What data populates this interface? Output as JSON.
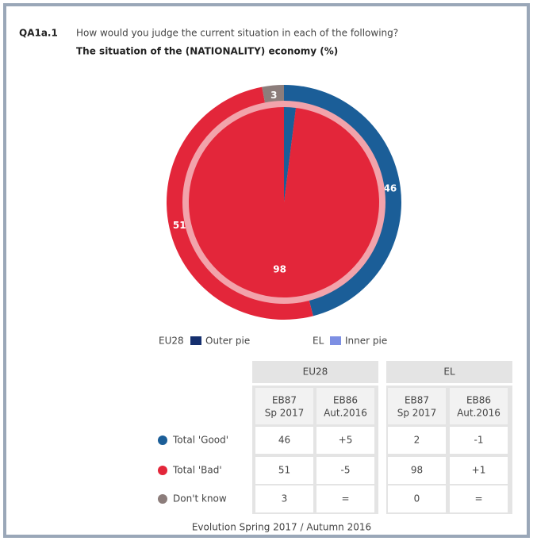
{
  "chart_data": {
    "type": "pie",
    "id": "QA1a.1",
    "question": "How would you judge the current situation in each of the following?",
    "title": "The situation of the (NATIONALITY) economy  (%)",
    "categories": [
      "Total 'Good'",
      "Total 'Bad'",
      "Don't know"
    ],
    "colors": [
      "#1b5e98",
      "#e3263a",
      "#8c7d7b"
    ],
    "ring_color": "#f2a3ab",
    "series": [
      {
        "name": "EU28",
        "legend_label": "Outer pie",
        "color": "#152f6e",
        "values": [
          46,
          51,
          3
        ]
      },
      {
        "name": "EL",
        "legend_label": "Inner pie",
        "color": "#7d8fe3",
        "values": [
          2,
          98,
          0
        ]
      }
    ]
  },
  "table": {
    "groups": [
      {
        "name": "EU28",
        "columns": [
          [
            "EB87",
            "Sp 2017"
          ],
          [
            "EB86",
            "Aut.2016"
          ]
        ]
      },
      {
        "name": "EL",
        "columns": [
          [
            "EB87",
            "Sp 2017"
          ],
          [
            "EB86",
            "Aut.2016"
          ]
        ]
      }
    ],
    "rows": [
      {
        "label": "Total 'Good'",
        "cells": [
          46,
          "+5",
          2,
          "-1"
        ]
      },
      {
        "label": "Total 'Bad'",
        "cells": [
          51,
          "-5",
          98,
          "+1"
        ]
      },
      {
        "label": "Don't know",
        "cells": [
          3,
          "=",
          0,
          "="
        ]
      }
    ],
    "footer": "Evolution Spring 2017 / Autumn 2016"
  }
}
